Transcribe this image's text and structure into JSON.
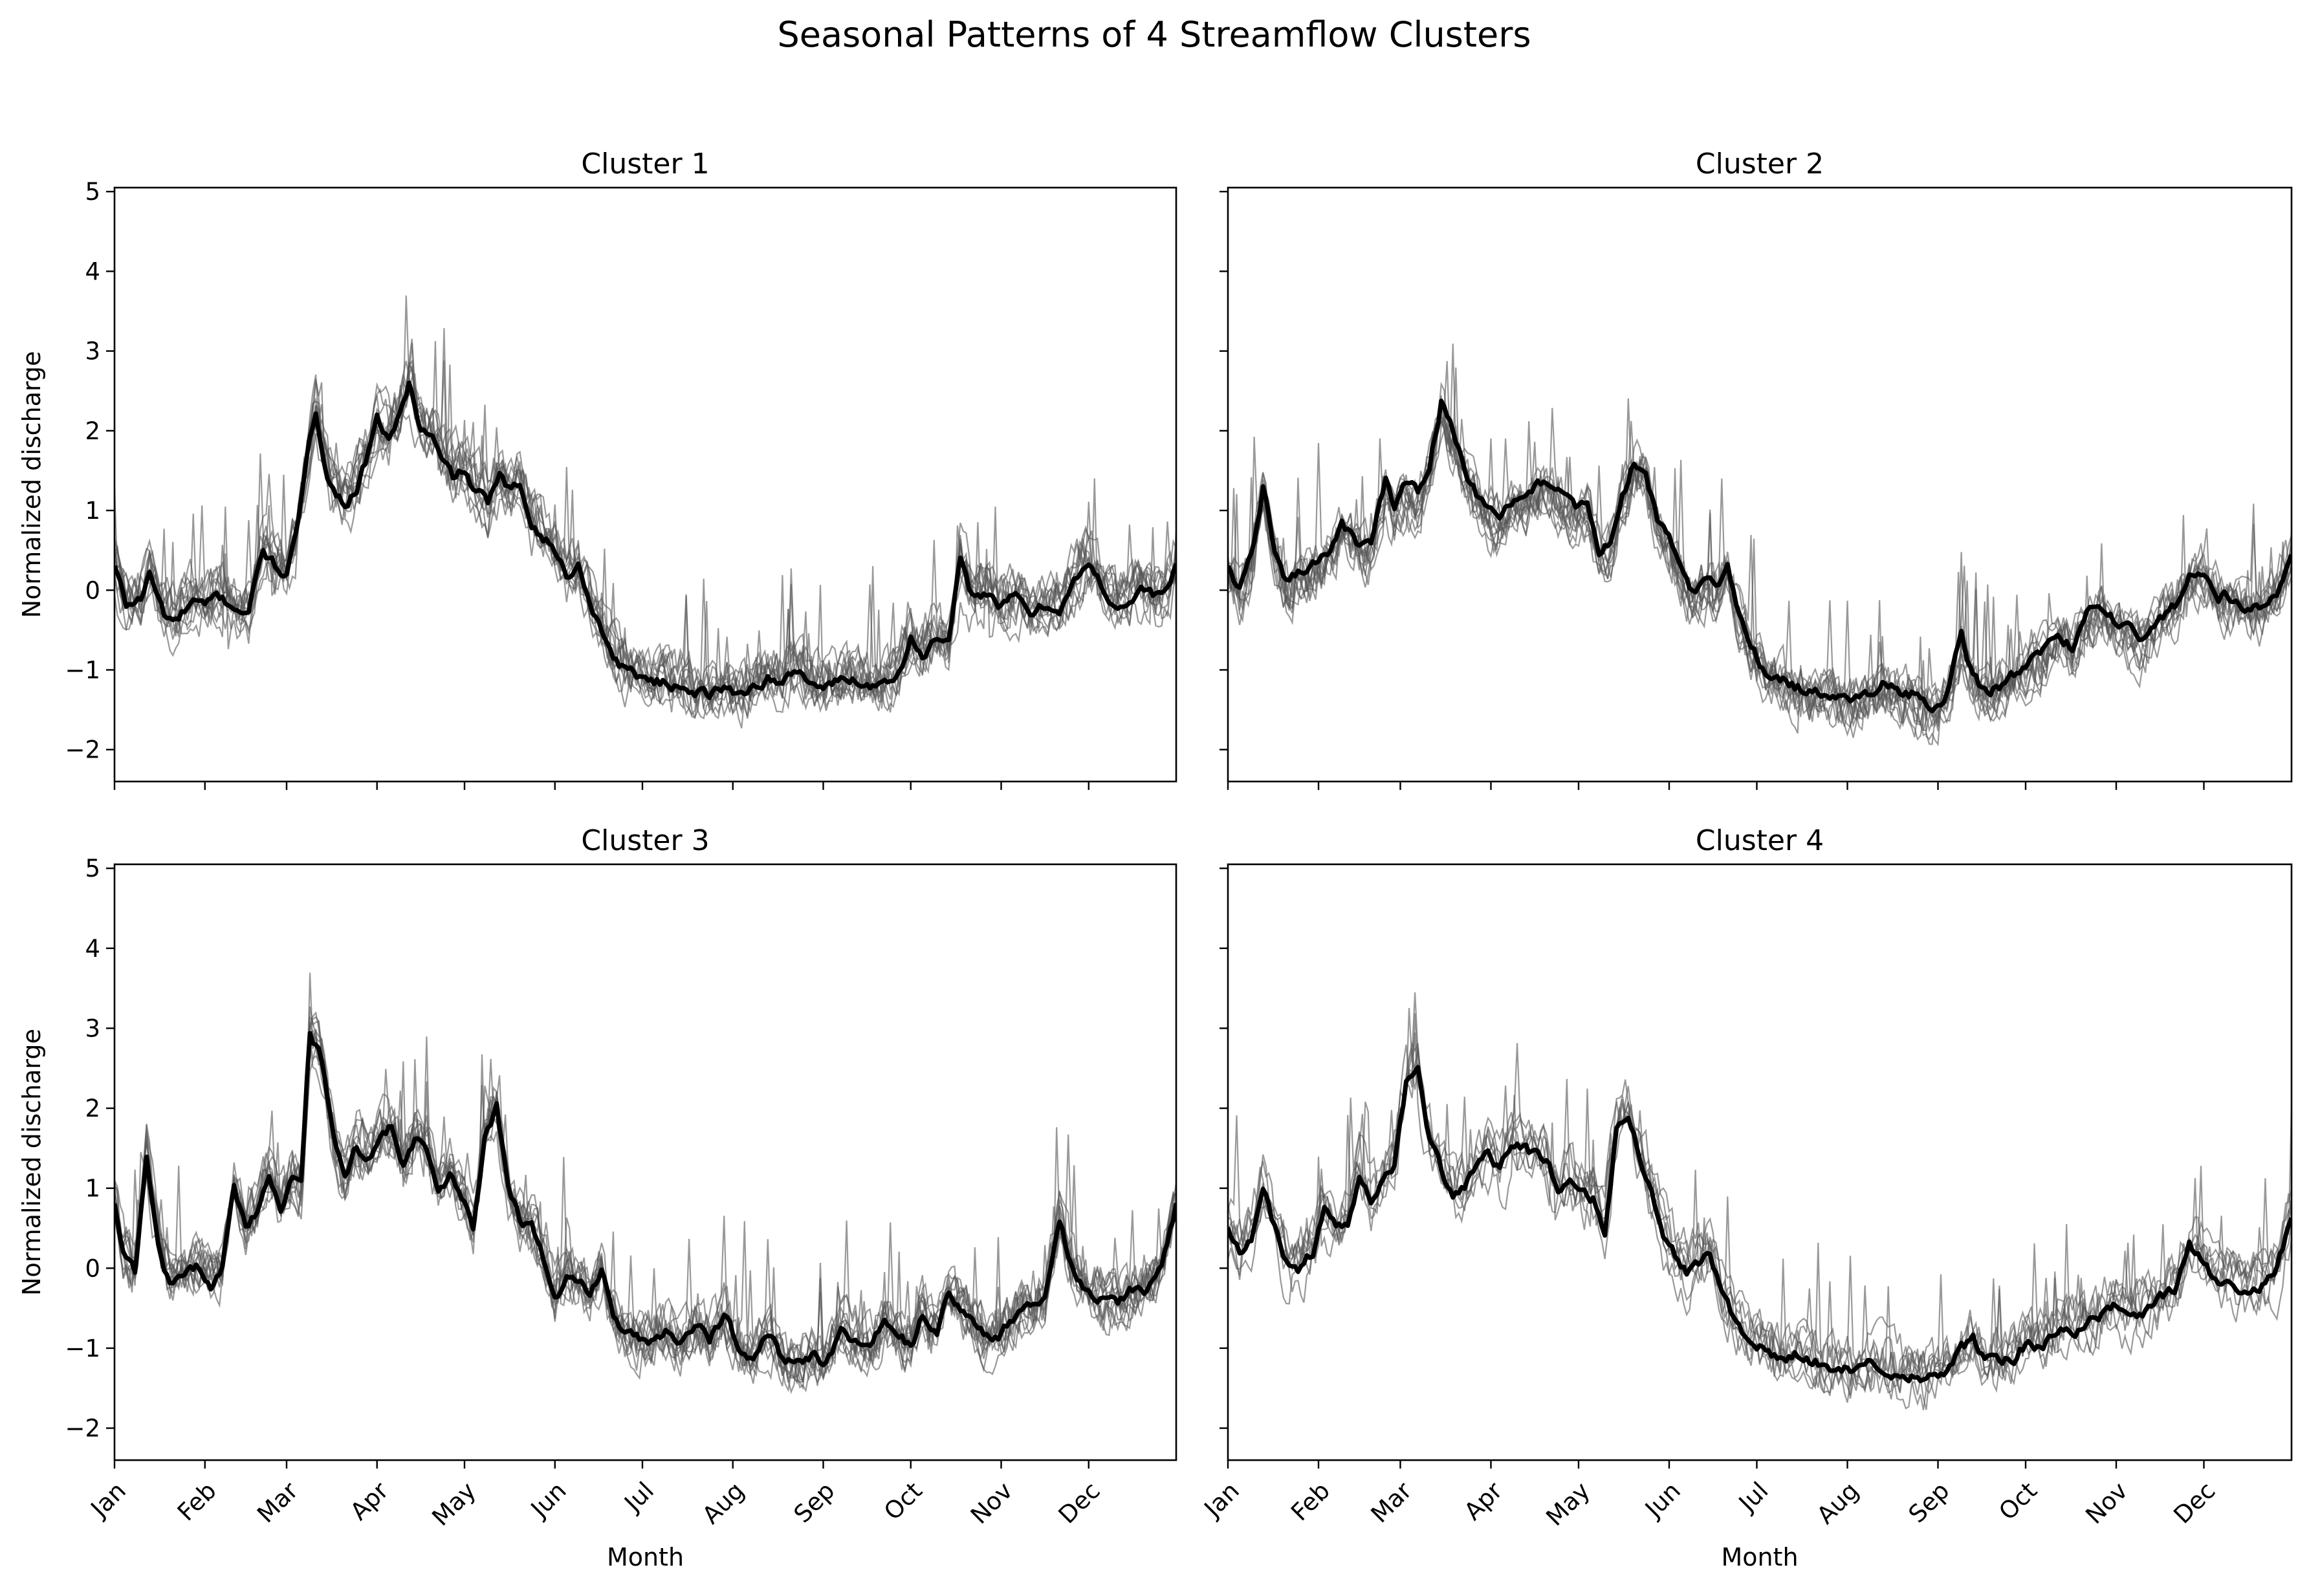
{
  "chart_data": {
    "type": "line",
    "title": "Seasonal Patterns of 4 Streamflow Clusters",
    "xlabel": "Month",
    "ylabel": "Normalized discharge",
    "xlim": [
      1,
      365
    ],
    "ylim": [
      -2.4,
      5.05
    ],
    "yticks": [
      -2,
      -1,
      0,
      1,
      2,
      3,
      4,
      5
    ],
    "ytick_labels": [
      "−2",
      "−1",
      "0",
      "1",
      "2",
      "3",
      "4",
      "5"
    ],
    "month_ticks": [
      1,
      32,
      60,
      91,
      121,
      152,
      182,
      213,
      244,
      274,
      305,
      335
    ],
    "month_labels": [
      "Jan",
      "Feb",
      "Mar",
      "Apr",
      "May",
      "Jun",
      "Jul",
      "Aug",
      "Sep",
      "Oct",
      "Nov",
      "Dec"
    ],
    "grid": false,
    "line_color": "#000000",
    "member_color": "#555555",
    "panels": [
      {
        "title": "Cluster 1",
        "member_count": 12,
        "mean": {
          "x": [
            1,
            5,
            10,
            13,
            18,
            22,
            28,
            32,
            36,
            42,
            47,
            52,
            56,
            60,
            63,
            67,
            70,
            74,
            77,
            80,
            84,
            88,
            91,
            95,
            99,
            102,
            106,
            110,
            113,
            117,
            121,
            125,
            129,
            133,
            137,
            140,
            144,
            148,
            152,
            156,
            160,
            164,
            168,
            172,
            176,
            180,
            184,
            188,
            192,
            196,
            200,
            205,
            210,
            215,
            220,
            225,
            230,
            235,
            240,
            244,
            250,
            255,
            260,
            265,
            270,
            274,
            278,
            283,
            287,
            291,
            295,
            300,
            305,
            310,
            315,
            320,
            325,
            330,
            335,
            340,
            345,
            350,
            355,
            360,
            365
          ],
          "y": [
            0.3,
            -0.2,
            -0.1,
            0.2,
            -0.3,
            -0.4,
            -0.15,
            -0.25,
            -0.1,
            -0.2,
            -0.25,
            0.5,
            0.3,
            0.2,
            0.6,
            1.6,
            2.2,
            1.5,
            1.2,
            1.1,
            1.3,
            1.7,
            2.1,
            1.9,
            2.2,
            2.6,
            2.0,
            1.9,
            1.6,
            1.4,
            1.5,
            1.2,
            1.1,
            1.4,
            1.2,
            1.3,
            0.9,
            0.7,
            0.5,
            0.2,
            0.3,
            -0.1,
            -0.5,
            -0.8,
            -1.0,
            -1.05,
            -1.1,
            -1.15,
            -1.2,
            -1.15,
            -1.25,
            -1.3,
            -1.25,
            -1.3,
            -1.2,
            -1.1,
            -1.2,
            -1.0,
            -1.15,
            -1.2,
            -1.15,
            -1.1,
            -1.2,
            -1.1,
            -1.0,
            -0.6,
            -0.8,
            -0.6,
            -0.7,
            0.3,
            -0.1,
            0.0,
            -0.2,
            -0.1,
            -0.3,
            -0.2,
            -0.2,
            0.1,
            0.3,
            0.0,
            -0.2,
            -0.1,
            0.0,
            -0.1,
            0.3
          ]
        }
      },
      {
        "title": "Cluster 2",
        "member_count": 12,
        "mean": {
          "x": [
            1,
            5,
            9,
            13,
            17,
            21,
            25,
            30,
            35,
            40,
            45,
            50,
            55,
            58,
            62,
            66,
            70,
            74,
            78,
            82,
            86,
            90,
            94,
            98,
            102,
            106,
            110,
            115,
            120,
            124,
            128,
            132,
            136,
            140,
            144,
            148,
            152,
            156,
            160,
            164,
            168,
            172,
            176,
            180,
            185,
            190,
            195,
            200,
            205,
            210,
            215,
            220,
            225,
            230,
            235,
            240,
            244,
            248,
            252,
            256,
            260,
            265,
            270,
            275,
            280,
            285,
            290,
            295,
            300,
            305,
            310,
            315,
            320,
            325,
            330,
            335,
            340,
            345,
            350,
            355,
            360,
            365
          ],
          "y": [
            0.3,
            0.0,
            0.4,
            1.3,
            0.5,
            0.1,
            0.2,
            0.3,
            0.5,
            0.8,
            0.6,
            0.5,
            1.4,
            1.0,
            1.3,
            1.2,
            1.6,
            2.4,
            2.0,
            1.5,
            1.2,
            1.0,
            0.9,
            1.1,
            1.1,
            1.3,
            1.4,
            1.2,
            1.0,
            1.1,
            0.5,
            0.6,
            1.2,
            1.6,
            1.5,
            0.9,
            0.6,
            0.3,
            0.0,
            0.1,
            0.0,
            0.3,
            -0.3,
            -0.7,
            -1.0,
            -1.1,
            -1.2,
            -1.25,
            -1.3,
            -1.35,
            -1.45,
            -1.3,
            -1.2,
            -1.25,
            -1.3,
            -1.45,
            -1.5,
            -1.2,
            -0.6,
            -1.1,
            -1.3,
            -1.2,
            -1.1,
            -0.9,
            -0.8,
            -0.5,
            -0.7,
            -0.3,
            -0.2,
            -0.4,
            -0.5,
            -0.6,
            -0.3,
            -0.2,
            0.2,
            0.3,
            0.0,
            -0.1,
            -0.2,
            -0.2,
            0.0,
            0.5
          ]
        }
      },
      {
        "title": "Cluster 3",
        "member_count": 12,
        "mean": {
          "x": [
            1,
            4,
            8,
            12,
            16,
            20,
            25,
            30,
            34,
            38,
            42,
            46,
            50,
            54,
            58,
            62,
            65,
            68,
            72,
            76,
            80,
            84,
            88,
            92,
            96,
            100,
            104,
            108,
            112,
            116,
            120,
            124,
            128,
            132,
            136,
            140,
            144,
            148,
            152,
            156,
            160,
            164,
            168,
            172,
            176,
            180,
            185,
            190,
            195,
            200,
            205,
            210,
            215,
            220,
            225,
            230,
            235,
            240,
            244,
            250,
            255,
            260,
            265,
            270,
            274,
            278,
            283,
            287,
            291,
            295,
            300,
            305,
            310,
            315,
            320,
            325,
            330,
            335,
            340,
            345,
            350,
            355,
            360,
            365
          ],
          "y": [
            0.8,
            0.2,
            -0.1,
            1.4,
            0.3,
            -0.2,
            -0.1,
            0.0,
            -0.2,
            0.0,
            1.0,
            0.5,
            0.7,
            1.2,
            0.8,
            1.1,
            1.0,
            2.9,
            2.6,
            1.6,
            1.1,
            1.5,
            1.4,
            1.6,
            1.8,
            1.3,
            1.6,
            1.4,
            1.0,
            1.2,
            0.9,
            0.5,
            1.6,
            2.0,
            1.0,
            0.6,
            0.5,
            0.1,
            -0.4,
            -0.1,
            -0.2,
            -0.3,
            0.0,
            -0.6,
            -0.8,
            -0.9,
            -0.9,
            -0.8,
            -1.0,
            -0.7,
            -0.9,
            -0.6,
            -1.0,
            -1.1,
            -0.8,
            -1.1,
            -1.2,
            -1.1,
            -1.2,
            -0.8,
            -0.9,
            -1.0,
            -0.7,
            -0.9,
            -1.0,
            -0.6,
            -0.8,
            -0.3,
            -0.5,
            -0.7,
            -0.9,
            -0.8,
            -0.6,
            -0.5,
            -0.4,
            0.6,
            -0.1,
            -0.3,
            -0.4,
            -0.5,
            -0.3,
            -0.3,
            0.0,
            0.8
          ]
        }
      },
      {
        "title": "Cluster 4",
        "member_count": 8,
        "mean": {
          "x": [
            1,
            5,
            9,
            13,
            17,
            21,
            25,
            30,
            34,
            38,
            42,
            46,
            50,
            54,
            58,
            62,
            66,
            70,
            74,
            78,
            82,
            86,
            90,
            94,
            98,
            102,
            106,
            110,
            114,
            118,
            122,
            126,
            130,
            134,
            138,
            142,
            146,
            150,
            154,
            158,
            162,
            166,
            170,
            175,
            180,
            185,
            190,
            195,
            200,
            205,
            210,
            215,
            220,
            225,
            230,
            235,
            240,
            244,
            248,
            252,
            256,
            260,
            265,
            270,
            275,
            280,
            285,
            290,
            295,
            300,
            305,
            310,
            315,
            320,
            325,
            330,
            335,
            340,
            345,
            350,
            355,
            360,
            365
          ],
          "y": [
            0.5,
            0.2,
            0.4,
            1.0,
            0.5,
            0.1,
            0.0,
            0.2,
            0.7,
            0.5,
            0.6,
            1.2,
            0.8,
            1.1,
            1.3,
            2.3,
            2.4,
            1.6,
            1.2,
            0.9,
            1.0,
            1.3,
            1.4,
            1.2,
            1.5,
            1.5,
            1.4,
            1.3,
            1.0,
            1.1,
            1.0,
            0.9,
            0.5,
            1.8,
            1.9,
            1.4,
            1.0,
            0.5,
            0.2,
            0.0,
            0.1,
            0.2,
            -0.3,
            -0.7,
            -0.9,
            -1.0,
            -1.1,
            -1.05,
            -1.15,
            -1.2,
            -1.25,
            -1.3,
            -1.2,
            -1.25,
            -1.3,
            -1.3,
            -1.35,
            -1.3,
            -1.2,
            -1.0,
            -0.9,
            -1.1,
            -1.2,
            -1.1,
            -0.9,
            -1.0,
            -0.8,
            -0.8,
            -0.7,
            -0.6,
            -0.5,
            -0.6,
            -0.5,
            -0.4,
            -0.3,
            0.3,
            0.1,
            -0.2,
            -0.2,
            -0.3,
            -0.2,
            0.0,
            0.6
          ]
        }
      }
    ]
  }
}
